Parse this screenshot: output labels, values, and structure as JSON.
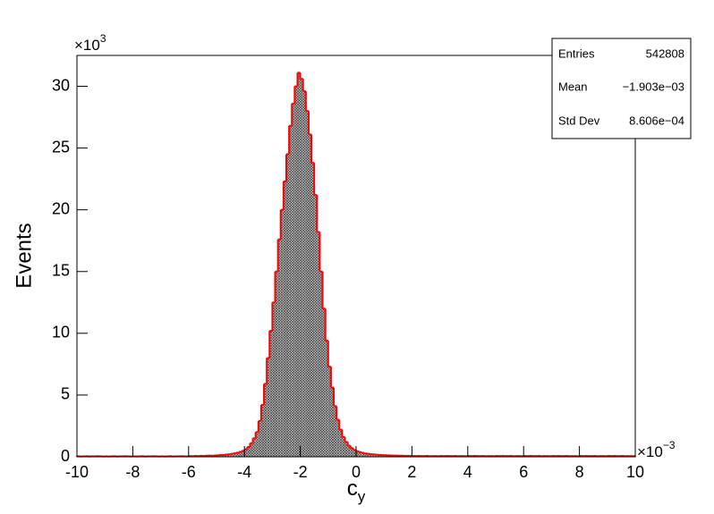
{
  "chart_data": {
    "type": "histogram",
    "ylabel": "Events",
    "xlabel": "c",
    "xlabel_sub": "y",
    "y_multiplier": "×10",
    "y_multiplier_exp": "3",
    "x_multiplier": "×10",
    "x_multiplier_exp": "−3",
    "color": "#ff0000",
    "xlim": [
      -10,
      10
    ],
    "ylim": [
      0,
      32.5
    ],
    "xticks": [
      -10,
      -8,
      -6,
      -4,
      -2,
      0,
      2,
      4,
      6,
      8,
      10
    ],
    "yticks": [
      0,
      5,
      10,
      15,
      20,
      25,
      30
    ],
    "stats": [
      {
        "label": "Entries",
        "value": "542808"
      },
      {
        "label": "Mean",
        "value": "−1.903e−03"
      },
      {
        "label": "Std Dev",
        "value": "8.606e−04"
      }
    ],
    "bins": [
      -10,
      -9.9,
      -9.8,
      -9.7,
      -9.6,
      -9.5,
      -9.4,
      -9.3,
      -9.2,
      -9.1,
      -9,
      -8.9,
      -8.8,
      -8.7,
      -8.6,
      -8.5,
      -8.4,
      -8.3,
      -8.2,
      -8.1,
      -8,
      -7.9,
      -7.8,
      -7.7,
      -7.6,
      -7.5,
      -7.4,
      -7.3,
      -7.2,
      -7.1,
      -7,
      -6.9,
      -6.8,
      -6.7,
      -6.6,
      -6.5,
      -6.4,
      -6.3,
      -6.2,
      -6.1,
      -6,
      -5.9,
      -5.8,
      -5.7,
      -5.6,
      -5.5,
      -5.4,
      -5.3,
      -5.2,
      -5.1,
      -5,
      -4.9,
      -4.8,
      -4.7,
      -4.6,
      -4.5,
      -4.4,
      -4.3,
      -4.2,
      -4.1,
      -4,
      -3.9,
      -3.8,
      -3.7,
      -3.6,
      -3.5,
      -3.4,
      -3.3,
      -3.2,
      -3.1,
      -3,
      -2.9,
      -2.8,
      -2.7,
      -2.6,
      -2.5,
      -2.4,
      -2.3,
      -2.2,
      -2.1,
      -2,
      -1.9,
      -1.8,
      -1.7,
      -1.6,
      -1.5,
      -1.4,
      -1.3,
      -1.2,
      -1.1,
      -1,
      -0.9,
      -0.8,
      -0.7,
      -0.6,
      -0.5,
      -0.4,
      -0.3,
      -0.2,
      -0.1,
      0,
      0.1,
      0.2,
      0.3,
      0.4,
      0.5,
      0.6,
      0.7,
      0.8,
      0.9,
      1,
      1.1,
      1.2,
      1.3,
      1.4,
      1.5,
      1.6,
      1.7,
      1.8,
      1.9,
      2,
      2.1,
      2.2,
      2.3,
      2.4,
      2.5,
      2.6,
      2.7,
      2.8,
      2.9,
      3,
      3.1,
      3.2,
      3.3,
      3.4,
      3.5,
      3.6,
      3.7,
      3.8,
      3.9,
      4,
      4.1,
      4.2,
      4.3,
      4.4,
      4.5,
      4.6,
      4.7,
      4.8,
      4.9,
      5,
      5.1,
      5.2,
      5.3,
      5.4,
      5.5,
      5.6,
      5.7,
      5.8,
      5.9,
      6,
      6.1,
      6.2,
      6.3,
      6.4,
      6.5,
      6.6,
      6.7,
      6.8,
      6.9,
      7,
      7.1,
      7.2,
      7.3,
      7.4,
      7.5,
      7.6,
      7.7,
      7.8,
      7.9,
      8,
      8.1,
      8.2,
      8.3,
      8.4,
      8.5,
      8.6,
      8.7,
      8.8,
      8.9,
      9,
      9.1,
      9.2,
      9.3,
      9.4,
      9.5,
      9.6,
      9.7,
      9.8,
      9.9,
      10
    ],
    "values": [
      0.04,
      0.03,
      0.04,
      0.05,
      0.03,
      0.04,
      0.04,
      0.05,
      0.04,
      0.03,
      0.04,
      0.03,
      0.04,
      0.05,
      0.03,
      0.04,
      0.04,
      0.05,
      0.04,
      0.03,
      0.04,
      0.03,
      0.04,
      0.05,
      0.03,
      0.04,
      0.04,
      0.05,
      0.04,
      0.03,
      0.04,
      0.03,
      0.04,
      0.05,
      0.03,
      0.04,
      0.04,
      0.05,
      0.04,
      0.03,
      0.06,
      0.05,
      0.07,
      0.06,
      0.08,
      0.07,
      0.09,
      0.1,
      0.09,
      0.11,
      0.12,
      0.14,
      0.15,
      0.18,
      0.2,
      0.24,
      0.28,
      0.33,
      0.4,
      0.48,
      0.6,
      0.8,
      1.1,
      1.5,
      2.0,
      2.9,
      4.2,
      5.9,
      8.0,
      10.2,
      12.5,
      15.0,
      17.6,
      20.0,
      22.3,
      24.5,
      26.8,
      28.6,
      30.0,
      31.1,
      30.6,
      29.6,
      28.0,
      26.1,
      23.8,
      21.2,
      18.2,
      15.0,
      12.0,
      9.4,
      7.3,
      5.6,
      4.1,
      3.0,
      2.2,
      1.6,
      1.2,
      0.9,
      0.7,
      0.55,
      0.45,
      0.38,
      0.32,
      0.27,
      0.24,
      0.21,
      0.19,
      0.17,
      0.15,
      0.14,
      0.13,
      0.12,
      0.11,
      0.1,
      0.1,
      0.09,
      0.09,
      0.08,
      0.08,
      0.08,
      0.07,
      0.06,
      0.07,
      0.06,
      0.06,
      0.07,
      0.05,
      0.06,
      0.06,
      0.05,
      0.07,
      0.06,
      0.07,
      0.06,
      0.06,
      0.07,
      0.05,
      0.06,
      0.06,
      0.05,
      0.07,
      0.06,
      0.07,
      0.06,
      0.06,
      0.07,
      0.05,
      0.06,
      0.06,
      0.05,
      0.07,
      0.06,
      0.07,
      0.06,
      0.06,
      0.07,
      0.05,
      0.06,
      0.06,
      0.05,
      0.07,
      0.06,
      0.07,
      0.06,
      0.06,
      0.07,
      0.05,
      0.06,
      0.06,
      0.05,
      0.07,
      0.06,
      0.07,
      0.06,
      0.06,
      0.07,
      0.05,
      0.06,
      0.06,
      0.05,
      0.07,
      0.06,
      0.07,
      0.06,
      0.06,
      0.07,
      0.05,
      0.06,
      0.06,
      0.05,
      0.07,
      0.06,
      0.07,
      0.06,
      0.06,
      0.07,
      0.05,
      0.06,
      0.06,
      0.05
    ]
  }
}
